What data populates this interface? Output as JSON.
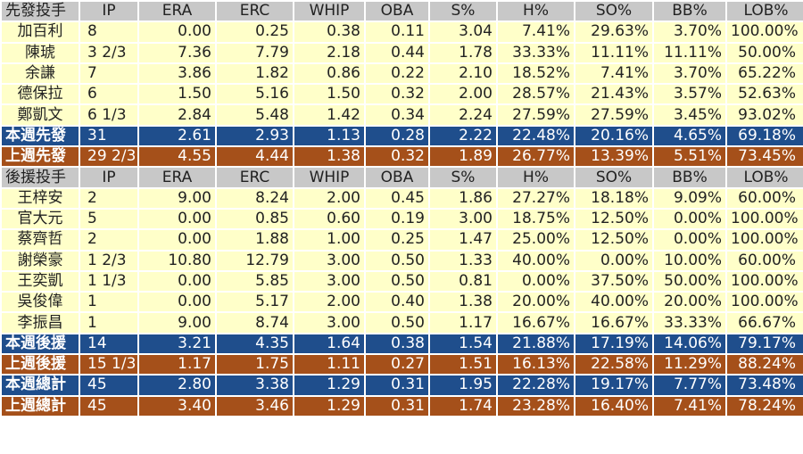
{
  "colors": {
    "header_bg": "#c8c8c8",
    "row_bg": "#ffffc9",
    "this_week_bg": "#1f4e8c",
    "last_week_bg": "#a5501a",
    "summary_text": "#ffffff"
  },
  "columns": [
    "IP",
    "ERA",
    "ERC",
    "WHIP",
    "OBA",
    "S%",
    "H%",
    "SO%",
    "BB%",
    "LOB%"
  ],
  "starters": {
    "header": "先發投手",
    "rows": [
      {
        "name": "加百利",
        "cells": [
          "8",
          "0.00",
          "0.25",
          "0.38",
          "0.11",
          "3.04",
          "7.41%",
          "29.63%",
          "3.70%",
          "100.00%"
        ]
      },
      {
        "name": "陳琥",
        "cells": [
          "3 2/3",
          "7.36",
          "7.79",
          "2.18",
          "0.44",
          "1.78",
          "33.33%",
          "11.11%",
          "11.11%",
          "50.00%"
        ]
      },
      {
        "name": "余謙",
        "cells": [
          "7",
          "3.86",
          "1.82",
          "0.86",
          "0.22",
          "2.10",
          "18.52%",
          "7.41%",
          "3.70%",
          "65.22%"
        ]
      },
      {
        "name": "德保拉",
        "cells": [
          "6",
          "1.50",
          "5.16",
          "1.50",
          "0.32",
          "2.00",
          "28.57%",
          "21.43%",
          "3.57%",
          "52.63%"
        ]
      },
      {
        "name": "鄭凱文",
        "cells": [
          "6 1/3",
          "2.84",
          "5.48",
          "1.42",
          "0.34",
          "2.24",
          "27.59%",
          "27.59%",
          "3.45%",
          "93.02%"
        ]
      }
    ],
    "this_week": {
      "name": "本週先發",
      "cells": [
        "31",
        "2.61",
        "2.93",
        "1.13",
        "0.28",
        "2.22",
        "22.48%",
        "20.16%",
        "4.65%",
        "69.18%"
      ]
    },
    "last_week": {
      "name": "上週先發",
      "cells": [
        "29 2/3",
        "4.55",
        "4.44",
        "1.38",
        "0.32",
        "1.89",
        "26.77%",
        "13.39%",
        "5.51%",
        "73.45%"
      ]
    }
  },
  "relievers": {
    "header": "後援投手",
    "rows": [
      {
        "name": "王梓安",
        "cells": [
          "2",
          "9.00",
          "8.24",
          "2.00",
          "0.45",
          "1.86",
          "27.27%",
          "18.18%",
          "9.09%",
          "60.00%"
        ]
      },
      {
        "name": "官大元",
        "cells": [
          "5",
          "0.00",
          "0.85",
          "0.60",
          "0.19",
          "3.00",
          "18.75%",
          "12.50%",
          "0.00%",
          "100.00%"
        ]
      },
      {
        "name": "蔡齊哲",
        "cells": [
          "2",
          "0.00",
          "1.88",
          "1.00",
          "0.25",
          "1.47",
          "25.00%",
          "12.50%",
          "0.00%",
          "100.00%"
        ]
      },
      {
        "name": "謝榮豪",
        "cells": [
          "1 2/3",
          "10.80",
          "12.79",
          "3.00",
          "0.50",
          "1.33",
          "40.00%",
          "0.00%",
          "10.00%",
          "60.00%"
        ]
      },
      {
        "name": "王奕凱",
        "cells": [
          "1 1/3",
          "0.00",
          "5.85",
          "3.00",
          "0.50",
          "0.81",
          "0.00%",
          "37.50%",
          "50.00%",
          "100.00%"
        ]
      },
      {
        "name": "吳俊偉",
        "cells": [
          "1",
          "0.00",
          "5.17",
          "2.00",
          "0.40",
          "1.38",
          "20.00%",
          "40.00%",
          "20.00%",
          "100.00%"
        ]
      },
      {
        "name": "李振昌",
        "cells": [
          "1",
          "9.00",
          "8.74",
          "3.00",
          "0.50",
          "1.17",
          "16.67%",
          "16.67%",
          "33.33%",
          "66.67%"
        ]
      }
    ],
    "this_week": {
      "name": "本週後援",
      "cells": [
        "14",
        "3.21",
        "4.35",
        "1.64",
        "0.38",
        "1.54",
        "21.88%",
        "17.19%",
        "14.06%",
        "79.17%"
      ]
    },
    "last_week": {
      "name": "上週後援",
      "cells": [
        "15 1/3",
        "1.17",
        "1.75",
        "1.11",
        "0.27",
        "1.51",
        "16.13%",
        "22.58%",
        "11.29%",
        "88.24%"
      ]
    }
  },
  "totals": {
    "this_week": {
      "name": "本週總計",
      "cells": [
        "45",
        "2.80",
        "3.38",
        "1.29",
        "0.31",
        "1.95",
        "22.28%",
        "19.17%",
        "7.77%",
        "73.48%"
      ]
    },
    "last_week": {
      "name": "上週總計",
      "cells": [
        "45",
        "3.40",
        "3.46",
        "1.29",
        "0.31",
        "1.74",
        "23.28%",
        "16.40%",
        "7.41%",
        "78.24%"
      ]
    }
  }
}
